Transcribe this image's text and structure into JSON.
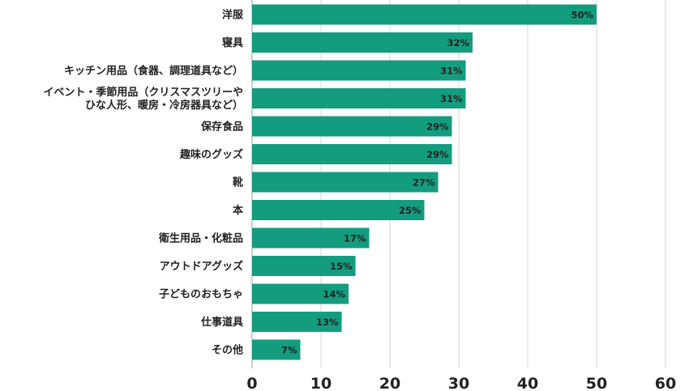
{
  "chart_data": {
    "type": "bar",
    "orientation": "horizontal",
    "categories": [
      "洋服",
      "寝具",
      "キッチン用品（食器、調理道具など）",
      "イベント・季節用品（クリスマスツリーや\nひな人形、暖房・冷房器具など）",
      "保存食品",
      "趣味のグッズ",
      "靴",
      "本",
      "衛生用品・化粧品",
      "アウトドアグッズ",
      "子どものおもちゃ",
      "仕事道具",
      "その他"
    ],
    "values": [
      50,
      32,
      31,
      31,
      29,
      29,
      27,
      25,
      17,
      15,
      14,
      13,
      7
    ],
    "value_labels": [
      "50%",
      "32%",
      "31%",
      "31%",
      "29%",
      "29%",
      "27%",
      "25%",
      "17%",
      "15%",
      "14%",
      "13%",
      "7%"
    ],
    "xlim": [
      0,
      60
    ],
    "xticks": [
      "0",
      "10",
      "20",
      "30",
      "40",
      "50",
      "60"
    ],
    "title": "",
    "xlabel": "",
    "ylabel": "",
    "grid": true,
    "bar_color": "#149c7f",
    "legend": "none"
  }
}
